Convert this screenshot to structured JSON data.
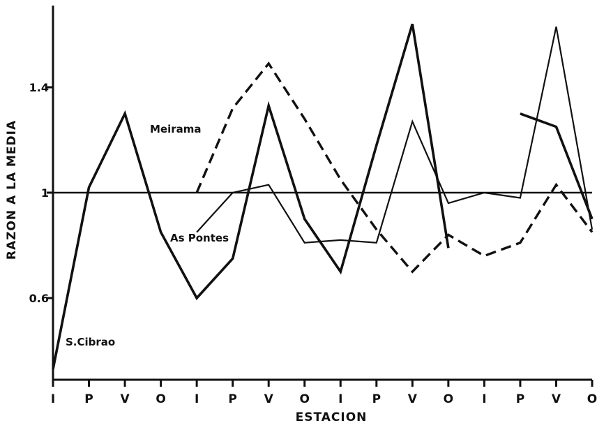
{
  "chart_data": {
    "type": "line",
    "xlabel": "ESTACION",
    "ylabel": "RAZON A LA MEDIA",
    "categories": [
      "I",
      "P",
      "V",
      "O",
      "I",
      "P",
      "V",
      "O",
      "I",
      "P",
      "V",
      "O",
      "I",
      "P",
      "V",
      "O"
    ],
    "yticks": [
      {
        "value": 0.6,
        "label": "0.6"
      },
      {
        "value": 1.0,
        "label": "1"
      },
      {
        "value": 1.4,
        "label": "1.4"
      }
    ],
    "ylim": [
      0.29,
      1.71
    ],
    "reference_line": 1.0,
    "series": [
      {
        "name": "S.Cibrao",
        "style": "thick-solid",
        "segments": [
          [
            [
              0,
              0.33
            ],
            [
              1,
              1.02
            ],
            [
              2,
              1.3
            ],
            [
              3,
              0.85
            ],
            [
              4,
              0.6
            ],
            [
              5,
              0.75
            ],
            [
              6,
              1.33
            ],
            [
              7,
              0.9
            ],
            [
              8,
              0.7
            ],
            [
              9,
              1.18
            ],
            [
              10,
              1.64
            ],
            [
              11,
              0.79
            ]
          ],
          [
            [
              13,
              1.3
            ],
            [
              14,
              1.25
            ],
            [
              15,
              0.9
            ]
          ]
        ]
      },
      {
        "name": "As Pontes",
        "style": "thin-solid",
        "segments": [
          [
            [
              4,
              0.85
            ],
            [
              5,
              1.0
            ],
            [
              6,
              1.03
            ],
            [
              7,
              0.81
            ],
            [
              8,
              0.82
            ],
            [
              9,
              0.81
            ],
            [
              10,
              1.27
            ],
            [
              11,
              0.96
            ],
            [
              12,
              1.0
            ],
            [
              13,
              0.98
            ],
            [
              14,
              1.63
            ],
            [
              15,
              0.86
            ]
          ]
        ]
      },
      {
        "name": "Meirama",
        "style": "dashed",
        "segments": [
          [
            [
              4,
              1.0
            ],
            [
              5,
              1.32
            ],
            [
              6,
              1.49
            ],
            [
              7,
              1.28
            ],
            [
              8,
              1.05
            ],
            [
              9,
              0.86
            ],
            [
              10,
              0.7
            ],
            [
              11,
              0.84
            ],
            [
              12,
              0.76
            ],
            [
              13,
              0.81
            ],
            [
              14,
              1.03
            ],
            [
              15,
              0.85
            ]
          ]
        ]
      }
    ]
  }
}
